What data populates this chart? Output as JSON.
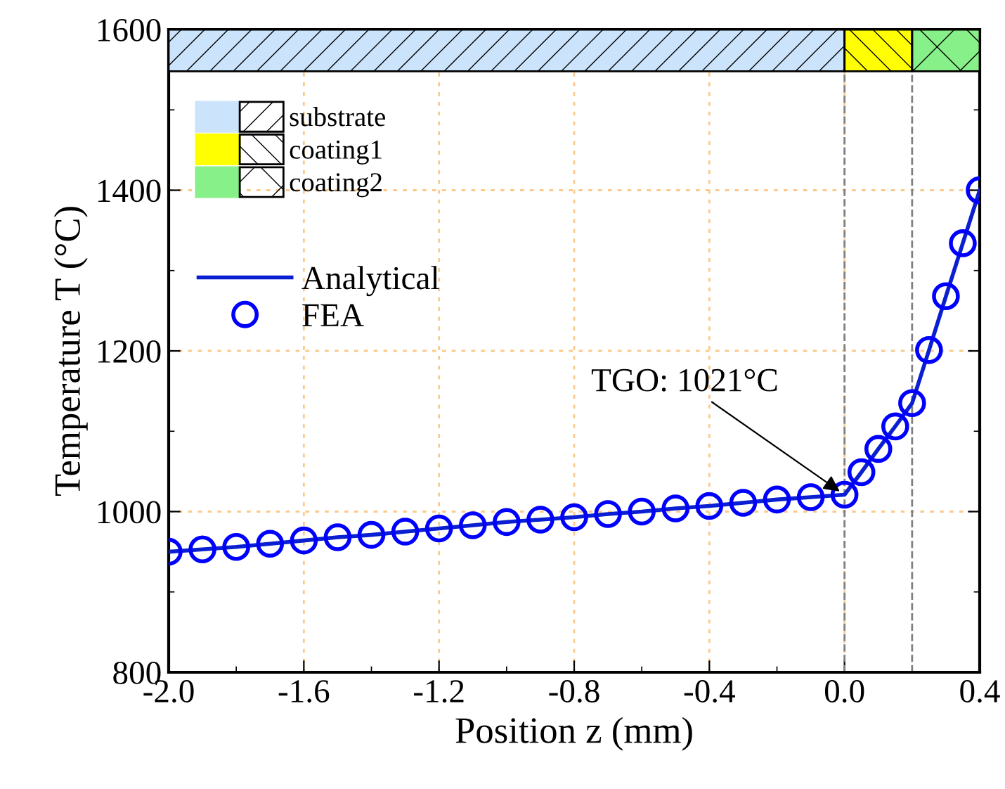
{
  "chart_data": {
    "type": "line",
    "xlabel": "Position z (mm)",
    "ylabel": "Temperature T (°C)",
    "xlim": [
      -2.0,
      0.4
    ],
    "xticks": [
      {
        "value": -2.0,
        "label": "-2.0"
      },
      {
        "value": -1.6,
        "label": "-1.6"
      },
      {
        "value": -1.2,
        "label": "-1.2"
      },
      {
        "value": -0.8,
        "label": "-0.8"
      },
      {
        "value": -0.4,
        "label": "-0.4"
      },
      {
        "value": 0.0,
        "label": "0.0"
      },
      {
        "value": 0.4,
        "label": "0.4"
      }
    ],
    "ylim": [
      800,
      1600
    ],
    "yticks": [
      800,
      1000,
      1200,
      1400,
      1600
    ],
    "grid": true,
    "legend": "left",
    "series": [
      {
        "name": "Analytical",
        "color": "#0a1fd0",
        "marker": "none",
        "line_style": "solid",
        "x": [
          -2.0,
          -1.9,
          -1.8,
          -1.7,
          -1.6,
          -1.5,
          -1.4,
          -1.3,
          -1.2,
          -1.1,
          -1.0,
          -0.9,
          -0.8,
          -0.7,
          -0.6,
          -0.5,
          -0.4,
          -0.3,
          -0.2,
          -0.1,
          0.0,
          0.05,
          0.1,
          0.15,
          0.2,
          0.25,
          0.3,
          0.35,
          0.4
        ],
        "values": [
          950,
          953,
          956,
          960,
          964,
          968,
          971,
          975,
          979,
          983,
          987,
          990,
          993,
          997,
          1000,
          1004,
          1007,
          1011,
          1015,
          1018,
          1021,
          1049,
          1078,
          1106,
          1135,
          1201,
          1268,
          1334,
          1400
        ]
      },
      {
        "name": "FEA",
        "type": "scatter",
        "color": "#0000ff",
        "marker": "circle",
        "x": [
          -2.0,
          -1.9,
          -1.8,
          -1.7,
          -1.6,
          -1.5,
          -1.4,
          -1.3,
          -1.2,
          -1.1,
          -1.0,
          -0.9,
          -0.8,
          -0.7,
          -0.6,
          -0.5,
          -0.4,
          -0.3,
          -0.2,
          -0.1,
          0.0,
          0.05,
          0.1,
          0.15,
          0.2,
          0.25,
          0.3,
          0.35,
          0.4
        ],
        "values": [
          950,
          953,
          956,
          960,
          964,
          968,
          971,
          975,
          979,
          983,
          987,
          990,
          993,
          997,
          1000,
          1004,
          1007,
          1011,
          1015,
          1018,
          1021,
          1049,
          1078,
          1106,
          1135,
          1201,
          1268,
          1334,
          1400
        ]
      }
    ],
    "bands": [
      {
        "axis": "x",
        "from": -2.0,
        "to": 0.0,
        "label": "substrate",
        "color": "#cce4fb"
      },
      {
        "axis": "x",
        "from": 0.0,
        "to": 0.2,
        "label": "coating1",
        "color": "#ffff00"
      },
      {
        "axis": "x",
        "from": 0.2,
        "to": 0.4,
        "label": "coating2",
        "color": "#88f088"
      }
    ],
    "ref_lines": [
      {
        "axis": "x",
        "value": 0.0,
        "color": "#808080",
        "line_style": "dashed"
      },
      {
        "axis": "x",
        "value": 0.2,
        "color": "#808080",
        "line_style": "dashed"
      }
    ],
    "annotations": [
      {
        "text": "TGO: 1021°C",
        "x": 0.0,
        "y": 1021
      }
    ]
  }
}
